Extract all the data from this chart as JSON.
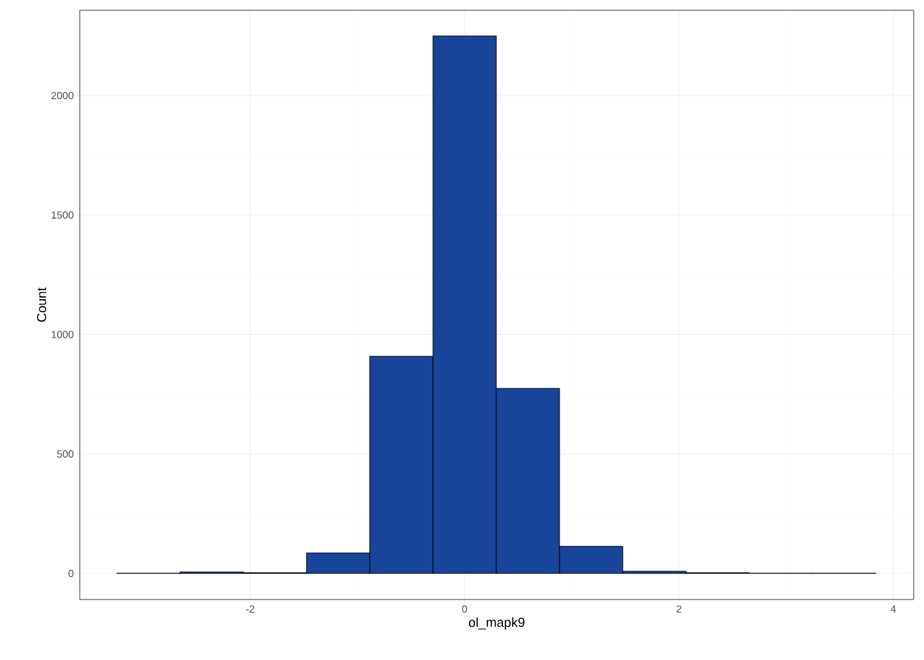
{
  "chart_data": {
    "type": "histogram",
    "xlabel": "ol_mapk9",
    "ylabel": "Count",
    "bins": [
      -3.244,
      -2.654,
      -2.064,
      -1.474,
      -0.884,
      -0.294,
      0.296,
      0.886,
      1.476,
      2.066,
      2.656,
      3.246,
      3.836
    ],
    "values": [
      1,
      6,
      3,
      86,
      909,
      2250,
      774,
      113,
      9,
      3,
      1,
      1
    ],
    "color": "#18449a",
    "xlim": [
      -3.59,
      4.19
    ],
    "ylim": [
      -109,
      2357
    ],
    "xticks": [
      -2,
      0,
      2,
      4
    ],
    "yticks": [
      0,
      500,
      1000,
      1500,
      2000
    ],
    "grid": true
  }
}
